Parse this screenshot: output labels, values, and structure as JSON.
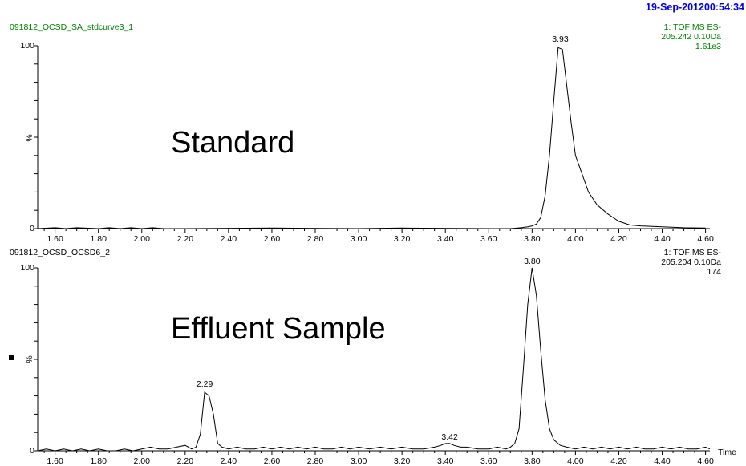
{
  "header": {
    "timestamp": "19-Sep-201200:54:34",
    "timestamp_color": "#0000e0",
    "meta_color": "#008000"
  },
  "x_axis_label": "Time",
  "chart_data": [
    {
      "type": "line",
      "sample_name": "091812_OCSD_SA_stdcurve3_1",
      "title": "Standard",
      "ylabel": "%",
      "info": [
        "1: TOF MS ES-",
        "205.242 0.10Da",
        "1.61e3"
      ],
      "xlim": [
        1.52,
        4.62
      ],
      "ylim": [
        0,
        100
      ],
      "x_ticks": [
        "1.60",
        "1.80",
        "2.00",
        "2.20",
        "2.40",
        "2.60",
        "2.80",
        "3.00",
        "3.20",
        "3.40",
        "3.60",
        "3.80",
        "4.00",
        "4.20",
        "4.40",
        "4.60"
      ],
      "y_ticks": [
        "100",
        "0"
      ],
      "peak_labels": [
        {
          "x": 3.93,
          "y": 100,
          "text": "3.93"
        }
      ],
      "series": [
        {
          "x": [
            1.52,
            1.6,
            1.65,
            1.7,
            1.8,
            1.85,
            1.9,
            1.95,
            2.0,
            2.05,
            2.1,
            2.2,
            2.6,
            3.0,
            3.2,
            3.6,
            3.7,
            3.75,
            3.78,
            3.8,
            3.82,
            3.84,
            3.86,
            3.88,
            3.9,
            3.92,
            3.94,
            3.96,
            3.98,
            4.0,
            4.03,
            4.06,
            4.1,
            4.15,
            4.2,
            4.25,
            4.3,
            4.4,
            4.5,
            4.6
          ],
          "y": [
            0,
            0.5,
            0,
            0.5,
            0,
            0.5,
            0,
            0.5,
            0,
            0.5,
            0,
            0,
            0.3,
            0,
            0.3,
            0,
            0,
            0.5,
            1,
            1.5,
            2.5,
            6,
            18,
            40,
            70,
            99,
            98,
            78,
            58,
            40,
            30,
            20,
            13,
            8,
            4,
            2,
            1.5,
            1,
            0.5,
            0.3
          ]
        }
      ]
    },
    {
      "type": "line",
      "sample_name": "091812_OCSD_OCSD6_2",
      "title": "Effluent Sample",
      "ylabel": "%",
      "info": [
        "1: TOF MS ES-",
        "205.204 0.10Da",
        "174"
      ],
      "xlim": [
        1.52,
        4.62
      ],
      "ylim": [
        0,
        100
      ],
      "x_ticks": [
        "1.60",
        "1.80",
        "2.00",
        "2.20",
        "2.40",
        "2.60",
        "2.80",
        "3.00",
        "3.20",
        "3.40",
        "3.60",
        "3.80",
        "4.00",
        "4.20",
        "4.40",
        "4.60"
      ],
      "y_ticks": [
        "100",
        "0"
      ],
      "peak_labels": [
        {
          "x": 2.29,
          "y": 33,
          "text": "2.29"
        },
        {
          "x": 3.42,
          "y": 4,
          "text": "3.42"
        },
        {
          "x": 3.8,
          "y": 100,
          "text": "3.80"
        }
      ],
      "series": [
        {
          "x": [
            1.52,
            1.56,
            1.6,
            1.64,
            1.68,
            1.72,
            1.76,
            1.8,
            1.84,
            1.88,
            1.92,
            1.96,
            2.0,
            2.04,
            2.08,
            2.12,
            2.16,
            2.2,
            2.23,
            2.25,
            2.27,
            2.29,
            2.31,
            2.33,
            2.35,
            2.37,
            2.4,
            2.44,
            2.48,
            2.52,
            2.56,
            2.6,
            2.64,
            2.68,
            2.72,
            2.76,
            2.8,
            2.84,
            2.88,
            2.92,
            2.96,
            3.0,
            3.05,
            3.1,
            3.15,
            3.2,
            3.25,
            3.3,
            3.35,
            3.38,
            3.4,
            3.42,
            3.44,
            3.47,
            3.5,
            3.55,
            3.6,
            3.64,
            3.68,
            3.7,
            3.72,
            3.74,
            3.76,
            3.78,
            3.8,
            3.82,
            3.84,
            3.86,
            3.88,
            3.9,
            3.93,
            3.96,
            4.0,
            4.04,
            4.08,
            4.12,
            4.16,
            4.2,
            4.24,
            4.28,
            4.32,
            4.36,
            4.4,
            4.44,
            4.48,
            4.52,
            4.56,
            4.6,
            4.62
          ],
          "y": [
            0,
            1,
            0,
            1,
            0,
            1,
            0,
            1,
            0,
            0,
            1,
            0,
            1,
            2,
            1,
            1,
            2,
            3,
            1,
            2,
            9,
            32,
            30,
            20,
            4,
            2,
            1,
            2,
            1,
            1,
            2,
            1,
            2,
            1,
            2,
            1,
            2,
            1,
            1,
            2,
            1,
            2,
            1,
            2,
            1,
            2,
            1,
            1,
            2,
            3,
            4,
            4,
            3,
            2,
            2,
            1,
            1,
            2,
            1,
            2,
            4,
            12,
            45,
            80,
            100,
            85,
            55,
            28,
            12,
            6,
            3,
            2,
            1,
            2,
            1,
            2,
            1,
            2,
            1,
            2,
            1,
            1,
            2,
            1,
            2,
            1,
            1,
            2,
            1
          ]
        }
      ]
    }
  ]
}
